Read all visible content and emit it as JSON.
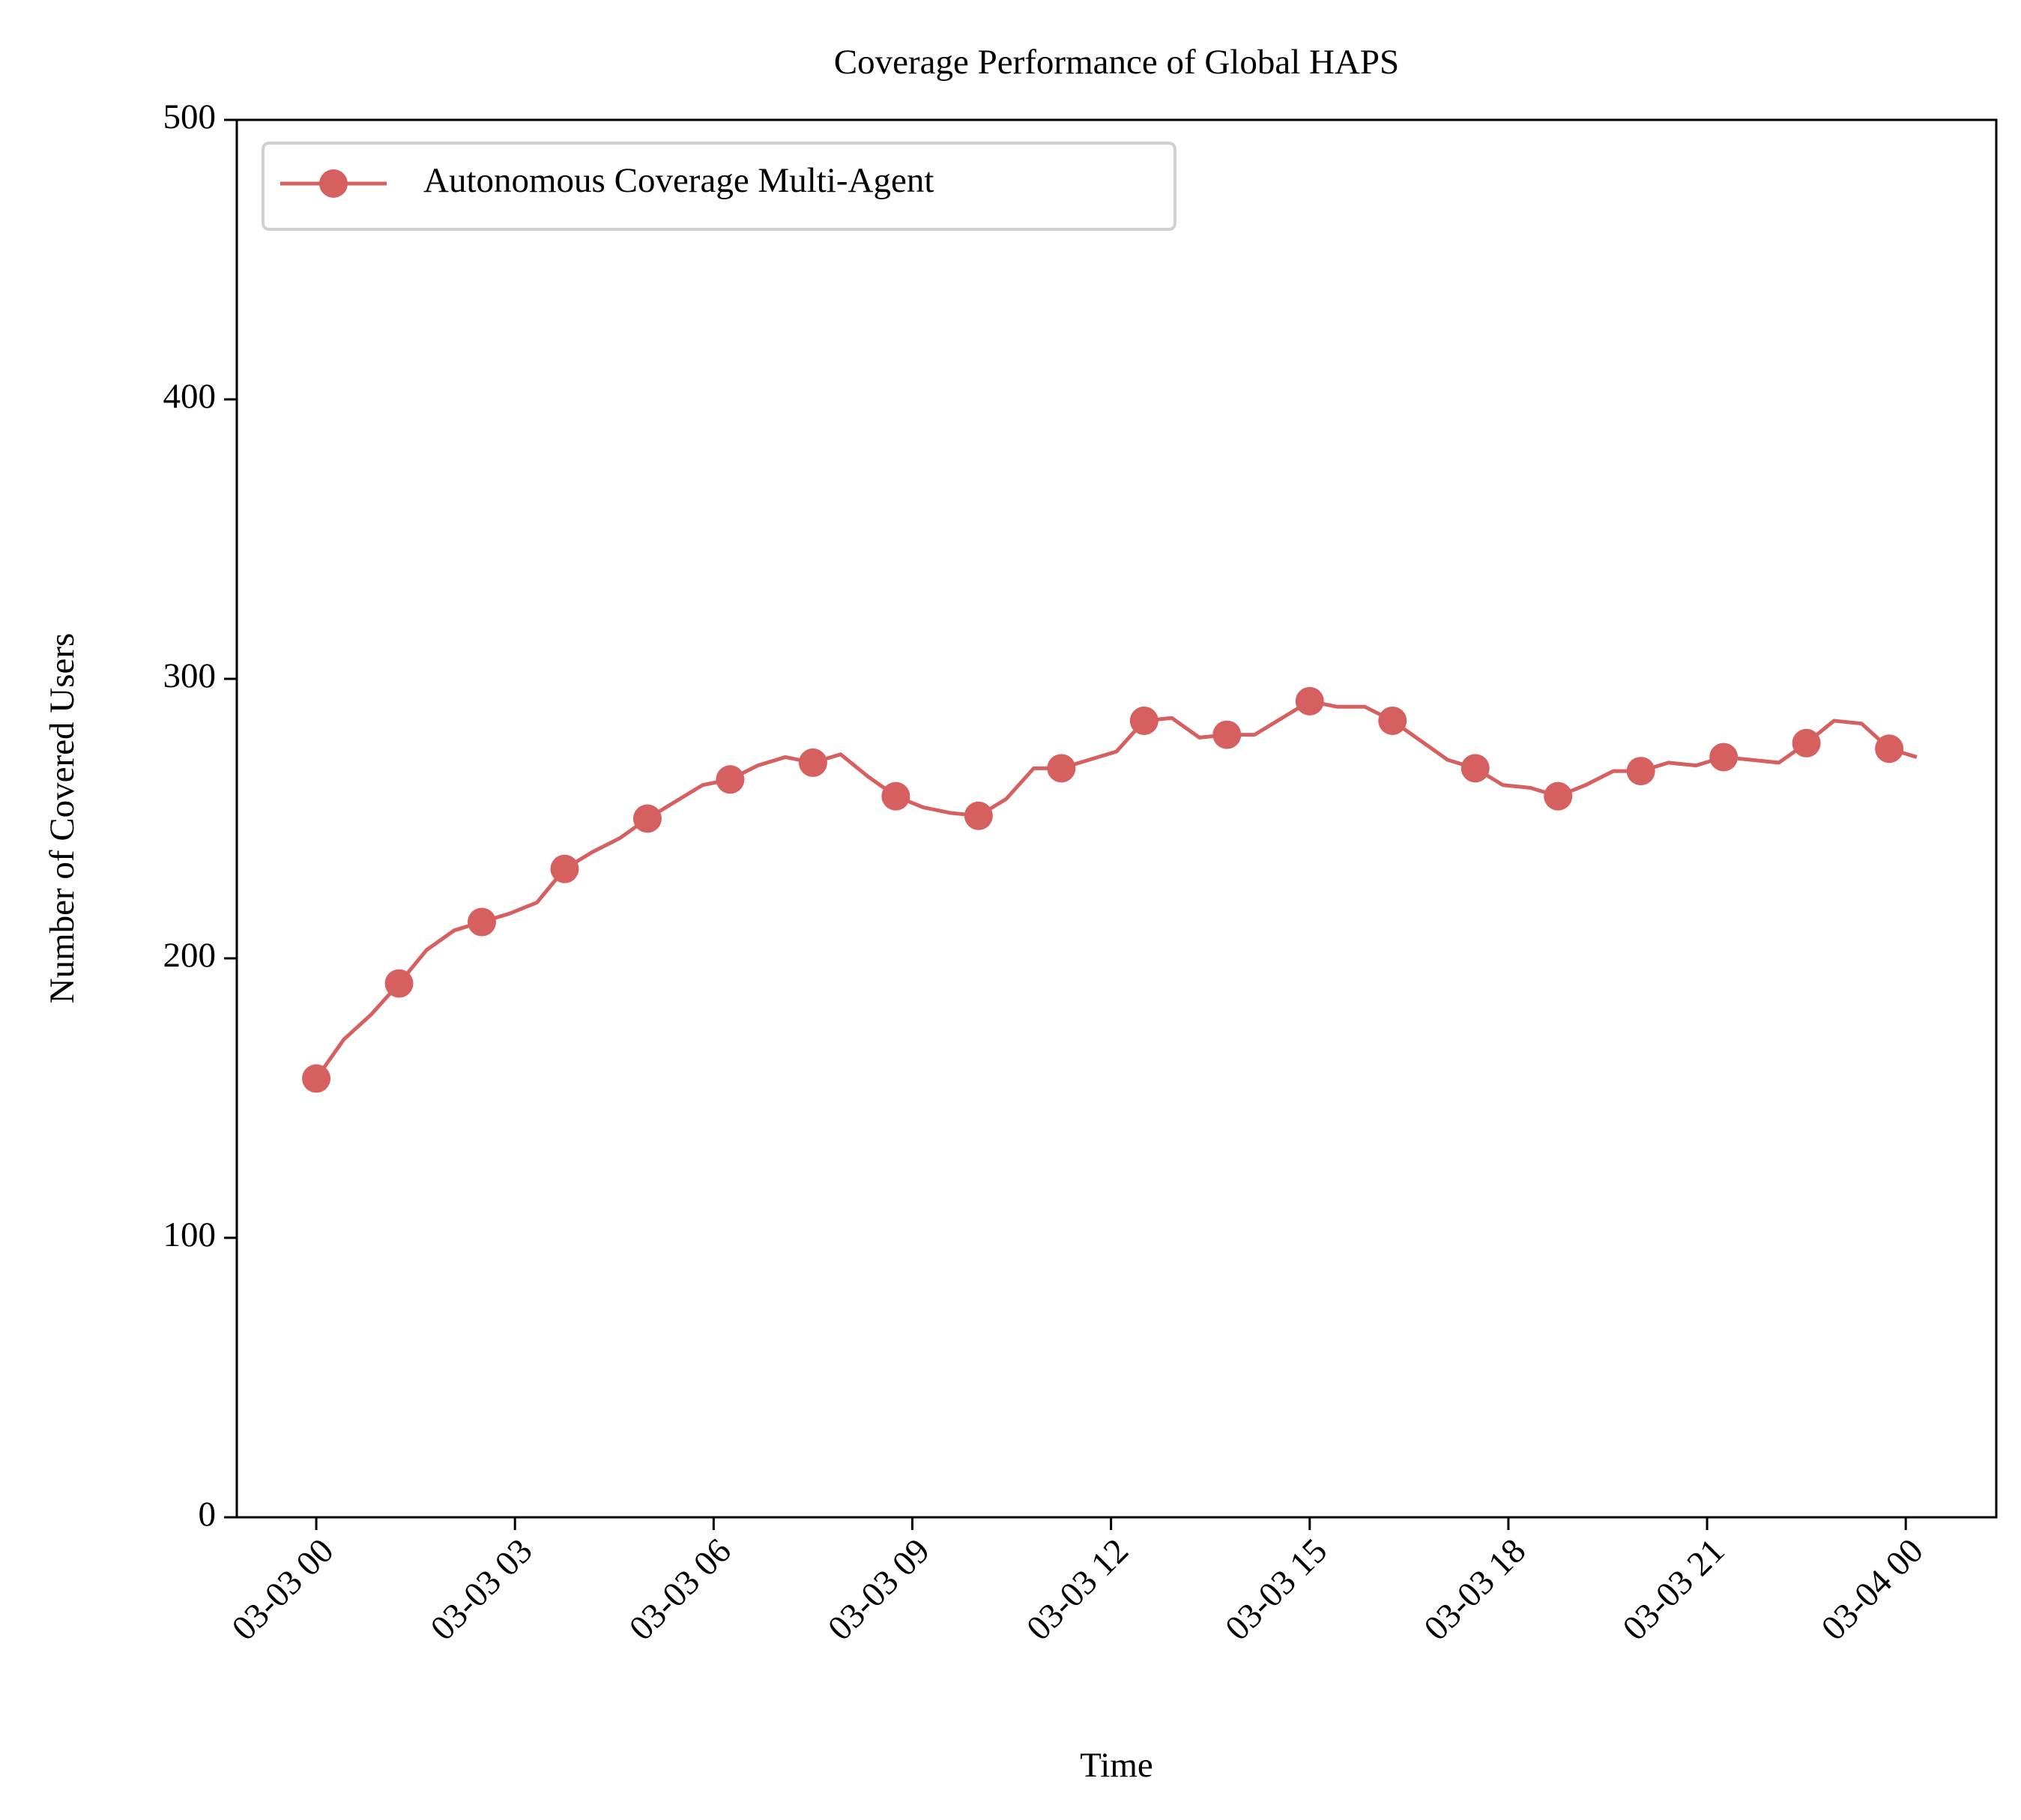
{
  "chart_data": {
    "type": "line",
    "title": "Coverage Performance of Global HAPS",
    "x_label": "Time",
    "y_label": "Number of Covered Users",
    "x": [
      "03-03 00:00",
      "03-03 00:25",
      "03-03 00:50",
      "03-03 01:15",
      "03-03 01:40",
      "03-03 02:05",
      "03-03 02:30",
      "03-03 02:55",
      "03-03 03:20",
      "03-03 03:45",
      "03-03 04:10",
      "03-03 04:35",
      "03-03 05:00",
      "03-03 05:25",
      "03-03 05:50",
      "03-03 06:15",
      "03-03 06:40",
      "03-03 07:05",
      "03-03 07:30",
      "03-03 07:55",
      "03-03 08:20",
      "03-03 08:45",
      "03-03 09:10",
      "03-03 09:35",
      "03-03 10:00",
      "03-03 10:25",
      "03-03 10:50",
      "03-03 11:15",
      "03-03 11:40",
      "03-03 12:05",
      "03-03 12:30",
      "03-03 12:55",
      "03-03 13:20",
      "03-03 13:45",
      "03-03 14:10",
      "03-03 14:35",
      "03-03 15:00",
      "03-03 15:25",
      "03-03 15:50",
      "03-03 16:15",
      "03-03 16:40",
      "03-03 17:05",
      "03-03 17:30",
      "03-03 17:55",
      "03-03 18:20",
      "03-03 18:45",
      "03-03 19:10",
      "03-03 19:35",
      "03-03 20:00",
      "03-03 20:25",
      "03-03 20:50",
      "03-03 21:15",
      "03-03 21:40",
      "03-03 22:05",
      "03-03 22:30",
      "03-03 22:55",
      "03-03 23:20",
      "03-03 23:45",
      "03-04 00:10"
    ],
    "series": [
      {
        "name": "Autonomous Coverage Multi-Agent",
        "color": "#d65f5f",
        "markevery": 3,
        "values": [
          157,
          171,
          180,
          191,
          203,
          210,
          213,
          216,
          220,
          232,
          238,
          243,
          250,
          256,
          262,
          264,
          269,
          272,
          270,
          273,
          265,
          258,
          254,
          252,
          251,
          257,
          268,
          268,
          271,
          274,
          285,
          286,
          279,
          280,
          280,
          286,
          292,
          290,
          290,
          285,
          278,
          271,
          268,
          262,
          261,
          258,
          262,
          267,
          267,
          270,
          269,
          272,
          271,
          270,
          277,
          285,
          284,
          275,
          272
        ]
      }
    ],
    "xlim": [
      "03-02 22:48",
      "03-04 01:22"
    ],
    "xticks": [
      "03-03 00",
      "03-03 03",
      "03-03 06",
      "03-03 09",
      "03-03 12",
      "03-03 15",
      "03-03 18",
      "03-03 21",
      "03-04 00"
    ],
    "ylim": [
      0,
      500
    ],
    "yticks": [
      0,
      100,
      200,
      300,
      400,
      500
    ],
    "grid": false,
    "legend": "upper left"
  }
}
